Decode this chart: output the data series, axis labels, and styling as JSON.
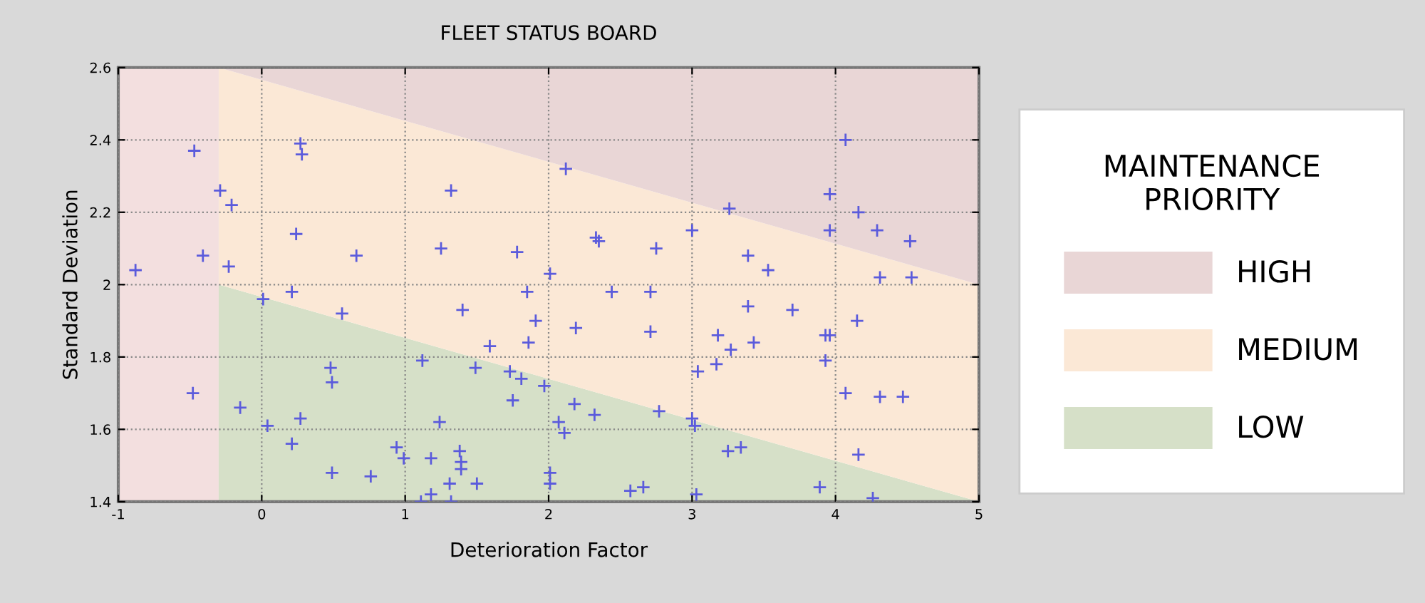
{
  "chart_data": {
    "type": "scatter",
    "title": "FLEET STATUS BOARD",
    "xlabel": "Deterioration Factor",
    "ylabel": "Standard Deviation",
    "legend_title": "MAINTENANCE\nPRIORITY",
    "legend": "right",
    "grid": true,
    "bands": [
      {
        "axis": "x",
        "from": -1,
        "to": -0.3,
        "color": "#f3dfdf"
      }
    ],
    "xlim": [
      -1,
      5
    ],
    "ylim": [
      1.4,
      2.6
    ],
    "xticks": [
      -1,
      0,
      1,
      2,
      3,
      4,
      5
    ],
    "yticks": [
      1.4,
      1.6,
      1.8,
      2,
      2.2,
      2.4,
      2.6
    ],
    "series": [
      {
        "name": "LOW",
        "type": "area",
        "color": "#d6e0c8",
        "x": [
          -0.3,
          5
        ],
        "values": [
          2.0,
          1.4
        ]
      },
      {
        "name": "MEDIUM",
        "type": "area",
        "color": "#fbe8d6",
        "x": [
          -0.3,
          5
        ],
        "values": [
          2.6,
          2.0
        ]
      },
      {
        "name": "HIGH",
        "type": "area",
        "color": "#e9d6d6",
        "x": [
          -0.3,
          5
        ],
        "values": [
          2.6,
          2.6
        ]
      },
      {
        "marker": "cross",
        "color": "#5b5bdc",
        "x": [
          -0.88,
          -0.47,
          -0.48,
          -0.29,
          -0.21,
          -0.41,
          -0.23,
          -0.15,
          0.01,
          0.04,
          0.21,
          0.24,
          0.27,
          0.28,
          0.27,
          0.21,
          0.56,
          0.66,
          0.48,
          0.49,
          0.49,
          0.76,
          0.94,
          0.99,
          1.32,
          2.12,
          1.25,
          1.78,
          2.33,
          2.35,
          2.75,
          3.0,
          2.01,
          1.85,
          2.44,
          2.71,
          1.4,
          1.91,
          2.19,
          2.71,
          1.59,
          1.86,
          1.12,
          1.49,
          1.73,
          1.81,
          1.97,
          1.75,
          2.18,
          2.32,
          2.77,
          3.0,
          3.02,
          3.04,
          1.24,
          2.07,
          2.11,
          1.18,
          1.38,
          1.39,
          1.39,
          1.31,
          1.5,
          1.18,
          1.11,
          1.32,
          2.01,
          2.01,
          2.57,
          2.66,
          3.03,
          4.07,
          3.96,
          3.26,
          4.16,
          3.96,
          4.29,
          4.52,
          3.39,
          3.53,
          4.31,
          4.53,
          3.39,
          3.7,
          4.15,
          3.18,
          3.93,
          3.96,
          3.27,
          3.43,
          3.93,
          3.17,
          4.07,
          4.31,
          4.47,
          3.25,
          3.34,
          4.16,
          3.89,
          4.26
        ],
        "values": [
          2.04,
          2.37,
          1.7,
          2.26,
          2.22,
          2.08,
          2.05,
          1.66,
          1.96,
          1.61,
          1.98,
          2.14,
          2.39,
          2.36,
          1.63,
          1.56,
          1.92,
          2.08,
          1.77,
          1.73,
          1.48,
          1.47,
          1.55,
          1.52,
          2.26,
          2.32,
          2.1,
          2.09,
          2.13,
          2.12,
          2.1,
          2.15,
          2.03,
          1.98,
          1.98,
          1.98,
          1.93,
          1.9,
          1.88,
          1.87,
          1.83,
          1.84,
          1.79,
          1.77,
          1.76,
          1.74,
          1.72,
          1.68,
          1.67,
          1.64,
          1.65,
          1.63,
          1.61,
          1.76,
          1.62,
          1.62,
          1.59,
          1.52,
          1.54,
          1.51,
          1.49,
          1.45,
          1.45,
          1.42,
          1.4,
          1.4,
          1.48,
          1.45,
          1.43,
          1.44,
          1.42,
          2.4,
          2.25,
          2.21,
          2.2,
          2.15,
          2.15,
          2.12,
          2.08,
          2.04,
          2.02,
          2.02,
          1.94,
          1.93,
          1.9,
          1.86,
          1.86,
          1.86,
          1.82,
          1.84,
          1.79,
          1.78,
          1.7,
          1.69,
          1.69,
          1.54,
          1.55,
          1.53,
          1.44,
          1.41
        ]
      }
    ]
  }
}
